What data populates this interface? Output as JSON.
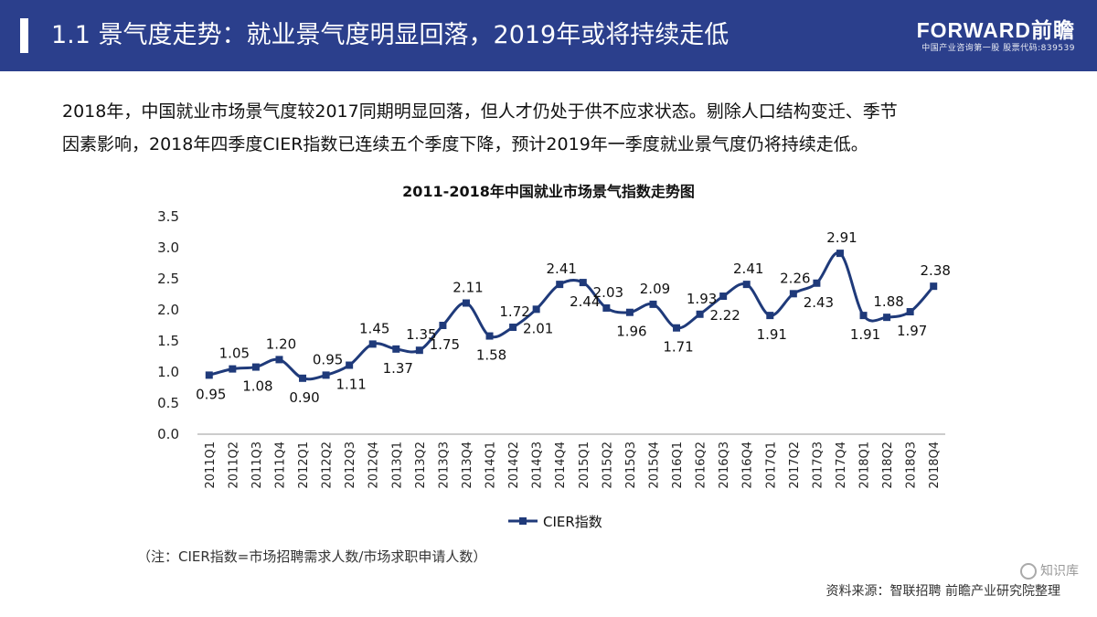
{
  "header": {
    "title": "1.1 景气度走势：就业景气度明显回落，2019年或将持续走低"
  },
  "logo": {
    "main": "FORWARD前瞻",
    "sub": "中国产业咨询第一股 股票代码:839539"
  },
  "paragraph": {
    "line1": "2018年，中国就业市场景气度较2017同期明显回落，但人才仍处于供不应求状态。剔除人口结构变迁、季节",
    "line2": "因素影响，2018年四季度CIER指数已连续五个季度下降，预计2019年一季度就业景气度仍将持续走低。"
  },
  "watermark_badge": "知识库",
  "chart_data": {
    "type": "line",
    "title": "2011-2018年中国就业市场景气指数走势图",
    "categories": [
      "2011Q1",
      "2011Q2",
      "2011Q3",
      "2011Q4",
      "2012Q1",
      "2012Q2",
      "2012Q3",
      "2012Q4",
      "2013Q1",
      "2013Q2",
      "2013Q3",
      "2013Q4",
      "2014Q1",
      "2014Q2",
      "2014Q3",
      "2014Q4",
      "2015Q1",
      "2015Q2",
      "2015Q3",
      "2015Q4",
      "2016Q1",
      "2016Q2",
      "2016Q3",
      "2016Q4",
      "2017Q1",
      "2017Q2",
      "2017Q3",
      "2017Q4",
      "2018Q1",
      "2018Q2",
      "2018Q3",
      "2018Q4"
    ],
    "series": [
      {
        "name": "CIER指数",
        "values": [
          0.95,
          1.05,
          1.08,
          1.2,
          0.9,
          0.95,
          1.11,
          1.45,
          1.37,
          1.35,
          1.75,
          2.11,
          1.58,
          1.72,
          2.01,
          2.41,
          2.44,
          2.03,
          1.96,
          2.09,
          1.71,
          1.93,
          2.22,
          2.41,
          1.91,
          2.26,
          2.43,
          2.91,
          1.91,
          1.88,
          1.97,
          2.38
        ]
      }
    ],
    "ylim": [
      0,
      3.5
    ],
    "yticks": [
      "0.0",
      "0.5",
      "1.0",
      "1.5",
      "2.0",
      "2.5",
      "3.0",
      "3.5"
    ],
    "grid": false,
    "legend_position": "bottom",
    "line_color": "#1f3a7a"
  },
  "footer": {
    "note": "（注：CIER指数=市场招聘需求人数/市场求职申请人数）",
    "source": "资料来源：智联招聘 前瞻产业研究院整理"
  }
}
